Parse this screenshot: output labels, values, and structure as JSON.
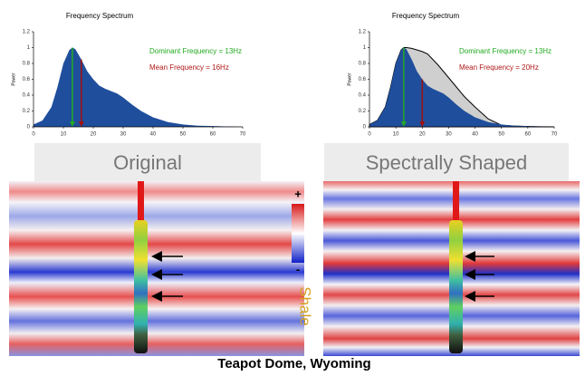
{
  "chart_data": [
    {
      "type": "area",
      "title": "Frequency Spectrum",
      "y_label": "Power",
      "x": [
        0,
        3,
        6,
        8,
        10,
        12,
        13,
        14,
        16,
        18,
        20,
        22,
        24,
        26,
        28,
        30,
        33,
        36,
        40,
        45,
        50,
        55,
        60,
        65,
        70
      ],
      "series": [
        {
          "color": "#1f4e9c",
          "values": [
            0.03,
            0.08,
            0.25,
            0.5,
            0.8,
            0.97,
            1.0,
            0.98,
            0.85,
            0.7,
            0.6,
            0.52,
            0.48,
            0.45,
            0.42,
            0.37,
            0.28,
            0.2,
            0.12,
            0.06,
            0.03,
            0.015,
            0.01,
            0.005,
            0
          ]
        }
      ],
      "xlim": [
        0,
        70
      ],
      "xticks": [
        0,
        10,
        20,
        30,
        40,
        50,
        60,
        70
      ],
      "ylim": [
        0,
        1.2
      ],
      "yticks": [
        0,
        0.2,
        0.4,
        0.6,
        0.8,
        1,
        1.2
      ],
      "markers": [
        {
          "x": 13,
          "color": "#22aa22"
        },
        {
          "x": 16,
          "color": "#a01010"
        }
      ],
      "annotations": [
        {
          "text": "Dominant Frequency = 13Hz",
          "color": "#22aa22"
        },
        {
          "text": "Mean Frequency = 16Hz",
          "color": "#b01818"
        }
      ]
    },
    {
      "type": "area",
      "title": "Frequency Spectrum",
      "y_label": "Power",
      "x": [
        0,
        3,
        6,
        8,
        10,
        12,
        13,
        14,
        16,
        18,
        20,
        22,
        24,
        26,
        28,
        30,
        33,
        36,
        40,
        45,
        50,
        55,
        60,
        65,
        70
      ],
      "series": [
        {
          "color": "#cfcfcf",
          "values": [
            0.03,
            0.08,
            0.25,
            0.5,
            0.8,
            0.97,
            1.0,
            1.0,
            0.99,
            0.97,
            0.95,
            0.92,
            0.85,
            0.78,
            0.7,
            0.62,
            0.5,
            0.38,
            0.25,
            0.1,
            0.02,
            0.01,
            0.005,
            0.002,
            0
          ]
        },
        {
          "color": "#1f4e9c",
          "values": [
            0.03,
            0.08,
            0.25,
            0.5,
            0.8,
            0.97,
            1.0,
            0.98,
            0.85,
            0.7,
            0.6,
            0.52,
            0.48,
            0.45,
            0.42,
            0.37,
            0.28,
            0.2,
            0.12,
            0.06,
            0.03,
            0.015,
            0.01,
            0.005,
            0
          ]
        }
      ],
      "xlim": [
        0,
        70
      ],
      "xticks": [
        0,
        10,
        20,
        30,
        40,
        50,
        60,
        70
      ],
      "ylim": [
        0,
        1.2
      ],
      "yticks": [
        0,
        0.2,
        0.4,
        0.6,
        0.8,
        1,
        1.2
      ],
      "markers": [
        {
          "x": 13,
          "color": "#22aa22"
        },
        {
          "x": 20,
          "color": "#a01010"
        }
      ],
      "annotations": [
        {
          "text": "Dominant Frequency = 13Hz",
          "color": "#22aa22"
        },
        {
          "text": "Mean Frequency = 20Hz",
          "color": "#b01818"
        }
      ]
    }
  ],
  "panel_labels": [
    "Original",
    "Spectrally Shaped"
  ],
  "colorbar": {
    "top": "+",
    "bottom": "-",
    "label": "Shale"
  },
  "footer": "Teapot Dome, Wyoming"
}
